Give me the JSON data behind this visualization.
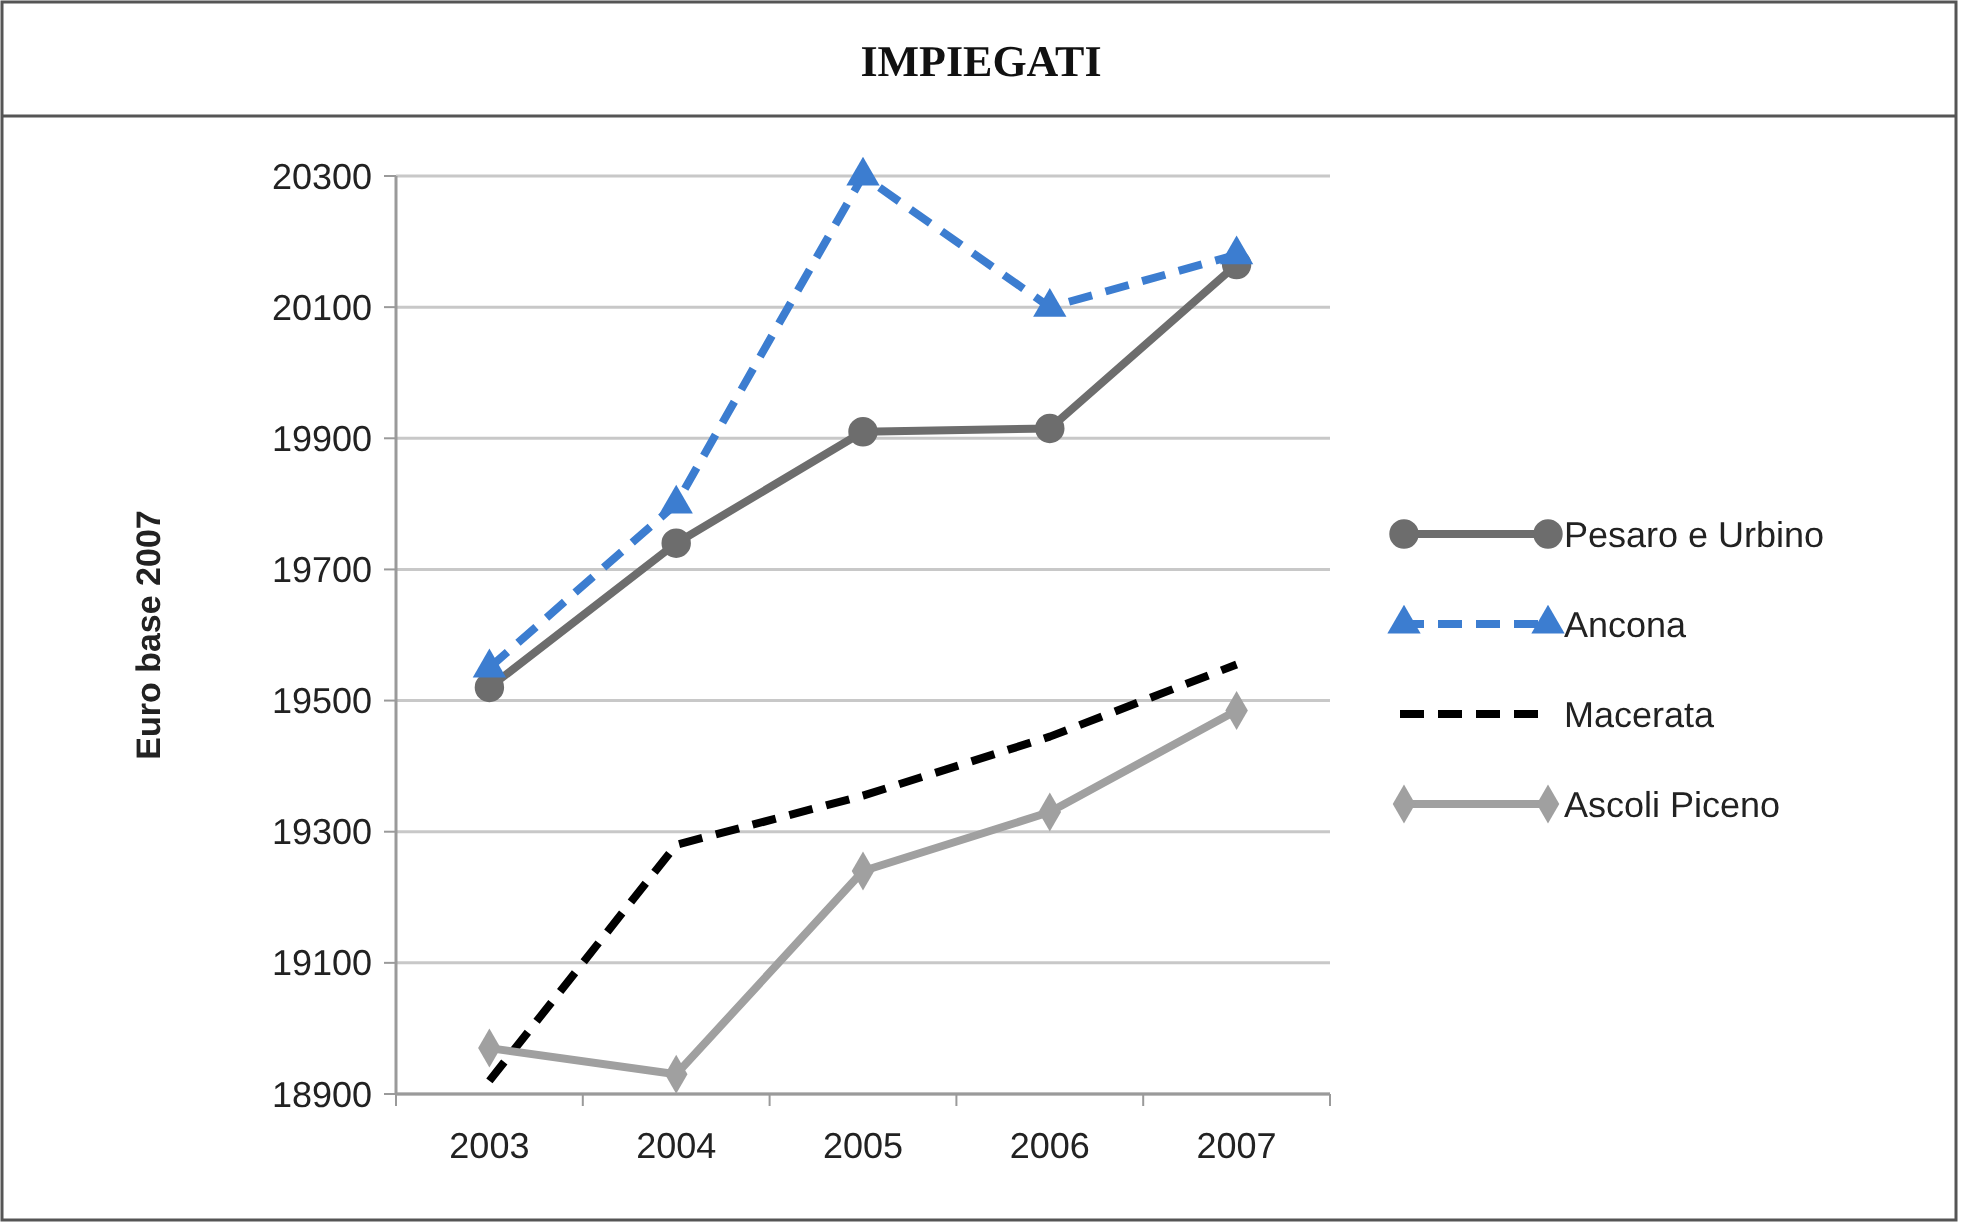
{
  "chart_data": {
    "type": "line",
    "title": "IMPIEGATI",
    "ylabel": "Euro base 2007",
    "categories": [
      "2003",
      "2004",
      "2005",
      "2006",
      "2007"
    ],
    "ylim": [
      18900,
      20300
    ],
    "yticks": [
      18900,
      19100,
      19300,
      19500,
      19700,
      19900,
      20100,
      20300
    ],
    "grid": "y",
    "legend": "right",
    "series": [
      {
        "name": "Pesaro e Urbino",
        "color": "#6d6d6d",
        "values": [
          19520,
          19740,
          19910,
          19915,
          20165
        ],
        "marker": "circle",
        "line_style": "solid"
      },
      {
        "name": "Ancona",
        "color": "#3c7dd0",
        "values": [
          19550,
          19800,
          20300,
          20100,
          20180
        ],
        "marker": "triangle",
        "line_style": "dashed"
      },
      {
        "name": "Macerata",
        "color": "#000000",
        "values": [
          18920,
          19280,
          19355,
          19445,
          19555
        ],
        "marker": "none",
        "line_style": "dashed"
      },
      {
        "name": "Ascoli Piceno",
        "color": "#a0a0a0",
        "values": [
          18970,
          18930,
          19240,
          19330,
          19485
        ],
        "marker": "diamond",
        "line_style": "solid"
      }
    ]
  }
}
